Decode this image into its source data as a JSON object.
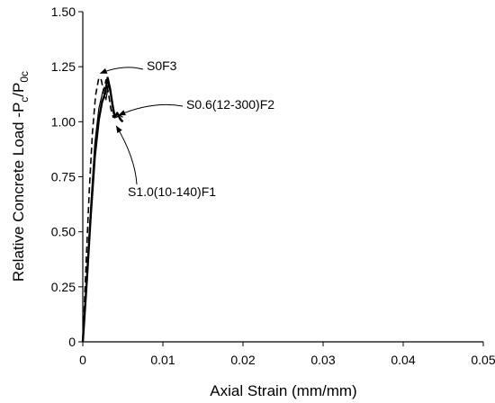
{
  "chart_data": {
    "type": "line",
    "title": "",
    "xlabel": "Axial Strain (mm/mm)",
    "ylabel": {
      "main": "Relative Concrete Load  -P",
      "sub1": "c",
      "mid": "/P",
      "sub2": "0c"
    },
    "xlim": [
      0,
      0.05
    ],
    "ylim": [
      0,
      1.5
    ],
    "x_ticks": [
      0,
      0.01,
      0.02,
      0.03,
      0.04,
      0.05
    ],
    "x_tick_labels": [
      "0",
      "0.01",
      "0.02",
      "0.03",
      "0.04",
      "0.05"
    ],
    "y_ticks": [
      0,
      0.25,
      0.5,
      0.75,
      1.0,
      1.25,
      1.5
    ],
    "y_tick_labels": [
      "0",
      "0.25",
      "0.50",
      "0.75",
      "1.00",
      "1.25",
      "1.50"
    ],
    "grid": false,
    "legend": "none",
    "series": [
      {
        "style": "dashed",
        "x": [
          0,
          0.0004,
          0.0008,
          0.0012,
          0.0016,
          0.002,
          0.0023,
          0.0026,
          0.0029,
          0.0032,
          0.0035,
          0.0038,
          0.0042,
          0.0046,
          0.005
        ],
        "y": [
          0,
          0.35,
          0.68,
          0.95,
          1.12,
          1.2,
          1.19,
          1.14,
          1.19,
          1.13,
          1.06,
          1.02,
          1.04,
          1.02,
          1.0
        ]
      },
      {
        "style": "solid-thin",
        "x": [
          0,
          0.0005,
          0.001,
          0.0015,
          0.002,
          0.0025,
          0.0029,
          0.0032,
          0.0035,
          0.0038,
          0.0042,
          0.0046,
          0.005
        ],
        "y": [
          0,
          0.3,
          0.62,
          0.9,
          1.06,
          1.14,
          1.1,
          1.17,
          1.12,
          1.04,
          1.02,
          1.03,
          1.02
        ]
      },
      {
        "style": "solid-thick",
        "x": [
          0,
          0.0005,
          0.001,
          0.0015,
          0.002,
          0.0024,
          0.0028,
          0.0031,
          0.0034,
          0.0037,
          0.004,
          0.0043,
          0.0047,
          0.005
        ],
        "y": [
          0,
          0.28,
          0.58,
          0.84,
          1.01,
          1.09,
          1.13,
          1.2,
          1.15,
          1.08,
          1.02,
          1.04,
          1.01,
          1.0
        ]
      }
    ],
    "annotations": [
      {
        "text": "S0F3",
        "arrow_to": [
          0.0022,
          1.22
        ]
      },
      {
        "text": "S0.6(12-300)F2",
        "arrow_to": [
          0.0045,
          1.03
        ]
      },
      {
        "text": "S1.0(10-140)F1",
        "arrow_to": [
          0.0042,
          0.98
        ]
      }
    ]
  }
}
